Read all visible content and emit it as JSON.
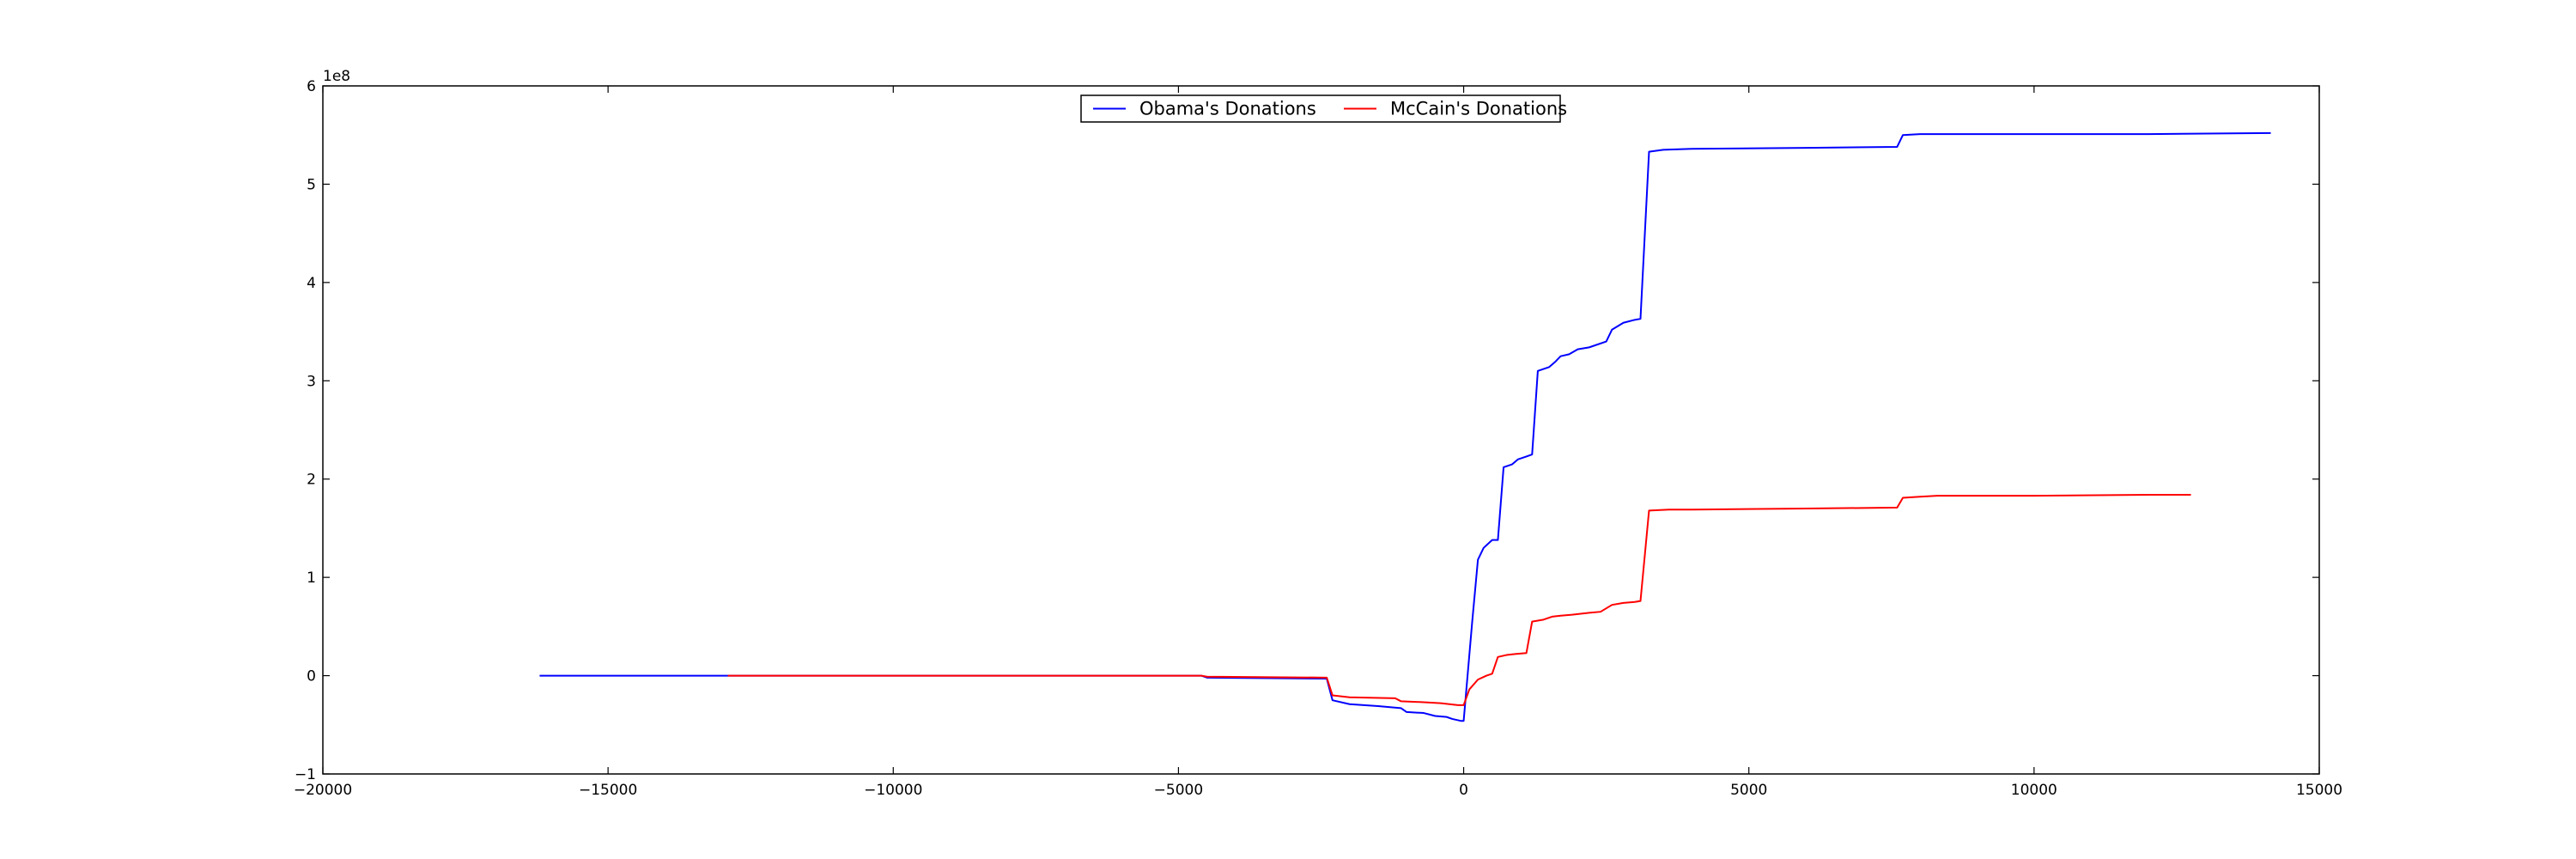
{
  "chart_data": {
    "type": "line",
    "title": "",
    "xlabel": "",
    "ylabel": "",
    "xlim": [
      -20000,
      15000
    ],
    "ylim": [
      -1,
      6
    ],
    "y_offset_label": "1e8",
    "grid": false,
    "legend_position": "top-center",
    "x_ticks": [
      {
        "value": -20000,
        "label": "−20000"
      },
      {
        "value": -15000,
        "label": "−15000"
      },
      {
        "value": -10000,
        "label": "−10000"
      },
      {
        "value": -5000,
        "label": "−5000"
      },
      {
        "value": 0,
        "label": "0"
      },
      {
        "value": 5000,
        "label": "5000"
      },
      {
        "value": 10000,
        "label": "10000"
      },
      {
        "value": 15000,
        "label": "15000"
      }
    ],
    "y_ticks": [
      {
        "value": -1,
        "label": "−1"
      },
      {
        "value": 0,
        "label": "0"
      },
      {
        "value": 1,
        "label": "1"
      },
      {
        "value": 2,
        "label": "2"
      },
      {
        "value": 3,
        "label": "3"
      },
      {
        "value": 4,
        "label": "4"
      },
      {
        "value": 5,
        "label": "5"
      },
      {
        "value": 6,
        "label": "6"
      }
    ],
    "series": [
      {
        "name": "Obama's Donations",
        "color": "#0000ff",
        "points": [
          [
            -16200,
            0.0
          ],
          [
            -4600,
            0.0
          ],
          [
            -4500,
            -0.02
          ],
          [
            -2400,
            -0.03
          ],
          [
            -2300,
            -0.25
          ],
          [
            -2000,
            -0.29
          ],
          [
            -1500,
            -0.31
          ],
          [
            -1100,
            -0.33
          ],
          [
            -1000,
            -0.37
          ],
          [
            -700,
            -0.38
          ],
          [
            -500,
            -0.41
          ],
          [
            -300,
            -0.42
          ],
          [
            -200,
            -0.44
          ],
          [
            -50,
            -0.46
          ],
          [
            0,
            -0.46
          ],
          [
            150,
            0.55
          ],
          [
            250,
            1.18
          ],
          [
            350,
            1.3
          ],
          [
            500,
            1.38
          ],
          [
            600,
            1.38
          ],
          [
            700,
            2.12
          ],
          [
            850,
            2.15
          ],
          [
            950,
            2.2
          ],
          [
            1100,
            2.23
          ],
          [
            1200,
            2.25
          ],
          [
            1300,
            3.1
          ],
          [
            1500,
            3.14
          ],
          [
            1600,
            3.19
          ],
          [
            1700,
            3.25
          ],
          [
            1850,
            3.27
          ],
          [
            2000,
            3.32
          ],
          [
            2200,
            3.34
          ],
          [
            2500,
            3.4
          ],
          [
            2600,
            3.52
          ],
          [
            2800,
            3.59
          ],
          [
            3000,
            3.62
          ],
          [
            3100,
            3.63
          ],
          [
            3250,
            5.33
          ],
          [
            3500,
            5.35
          ],
          [
            4000,
            5.36
          ],
          [
            6000,
            5.37
          ],
          [
            7600,
            5.38
          ],
          [
            7700,
            5.5
          ],
          [
            8000,
            5.51
          ],
          [
            12000,
            5.51
          ],
          [
            14150,
            5.52
          ]
        ]
      },
      {
        "name": "McCain's Donations",
        "color": "#ff0000",
        "points": [
          [
            -12900,
            0.0
          ],
          [
            -4600,
            0.0
          ],
          [
            -4500,
            -0.01
          ],
          [
            -2400,
            -0.02
          ],
          [
            -2300,
            -0.2
          ],
          [
            -2000,
            -0.22
          ],
          [
            -1200,
            -0.23
          ],
          [
            -1100,
            -0.26
          ],
          [
            -700,
            -0.27
          ],
          [
            -400,
            -0.28
          ],
          [
            -100,
            -0.3
          ],
          [
            0,
            -0.3
          ],
          [
            100,
            -0.14
          ],
          [
            250,
            -0.04
          ],
          [
            400,
            0.0
          ],
          [
            500,
            0.02
          ],
          [
            600,
            0.19
          ],
          [
            750,
            0.21
          ],
          [
            900,
            0.22
          ],
          [
            1100,
            0.23
          ],
          [
            1200,
            0.55
          ],
          [
            1400,
            0.57
          ],
          [
            1550,
            0.6
          ],
          [
            1700,
            0.61
          ],
          [
            1900,
            0.62
          ],
          [
            2200,
            0.64
          ],
          [
            2400,
            0.65
          ],
          [
            2600,
            0.72
          ],
          [
            2800,
            0.74
          ],
          [
            3000,
            0.75
          ],
          [
            3100,
            0.76
          ],
          [
            3250,
            1.68
          ],
          [
            3600,
            1.69
          ],
          [
            4000,
            1.69
          ],
          [
            6000,
            1.7
          ],
          [
            7600,
            1.71
          ],
          [
            7700,
            1.81
          ],
          [
            8000,
            1.82
          ],
          [
            8300,
            1.83
          ],
          [
            10000,
            1.83
          ],
          [
            12000,
            1.84
          ],
          [
            12750,
            1.84
          ]
        ]
      }
    ]
  }
}
